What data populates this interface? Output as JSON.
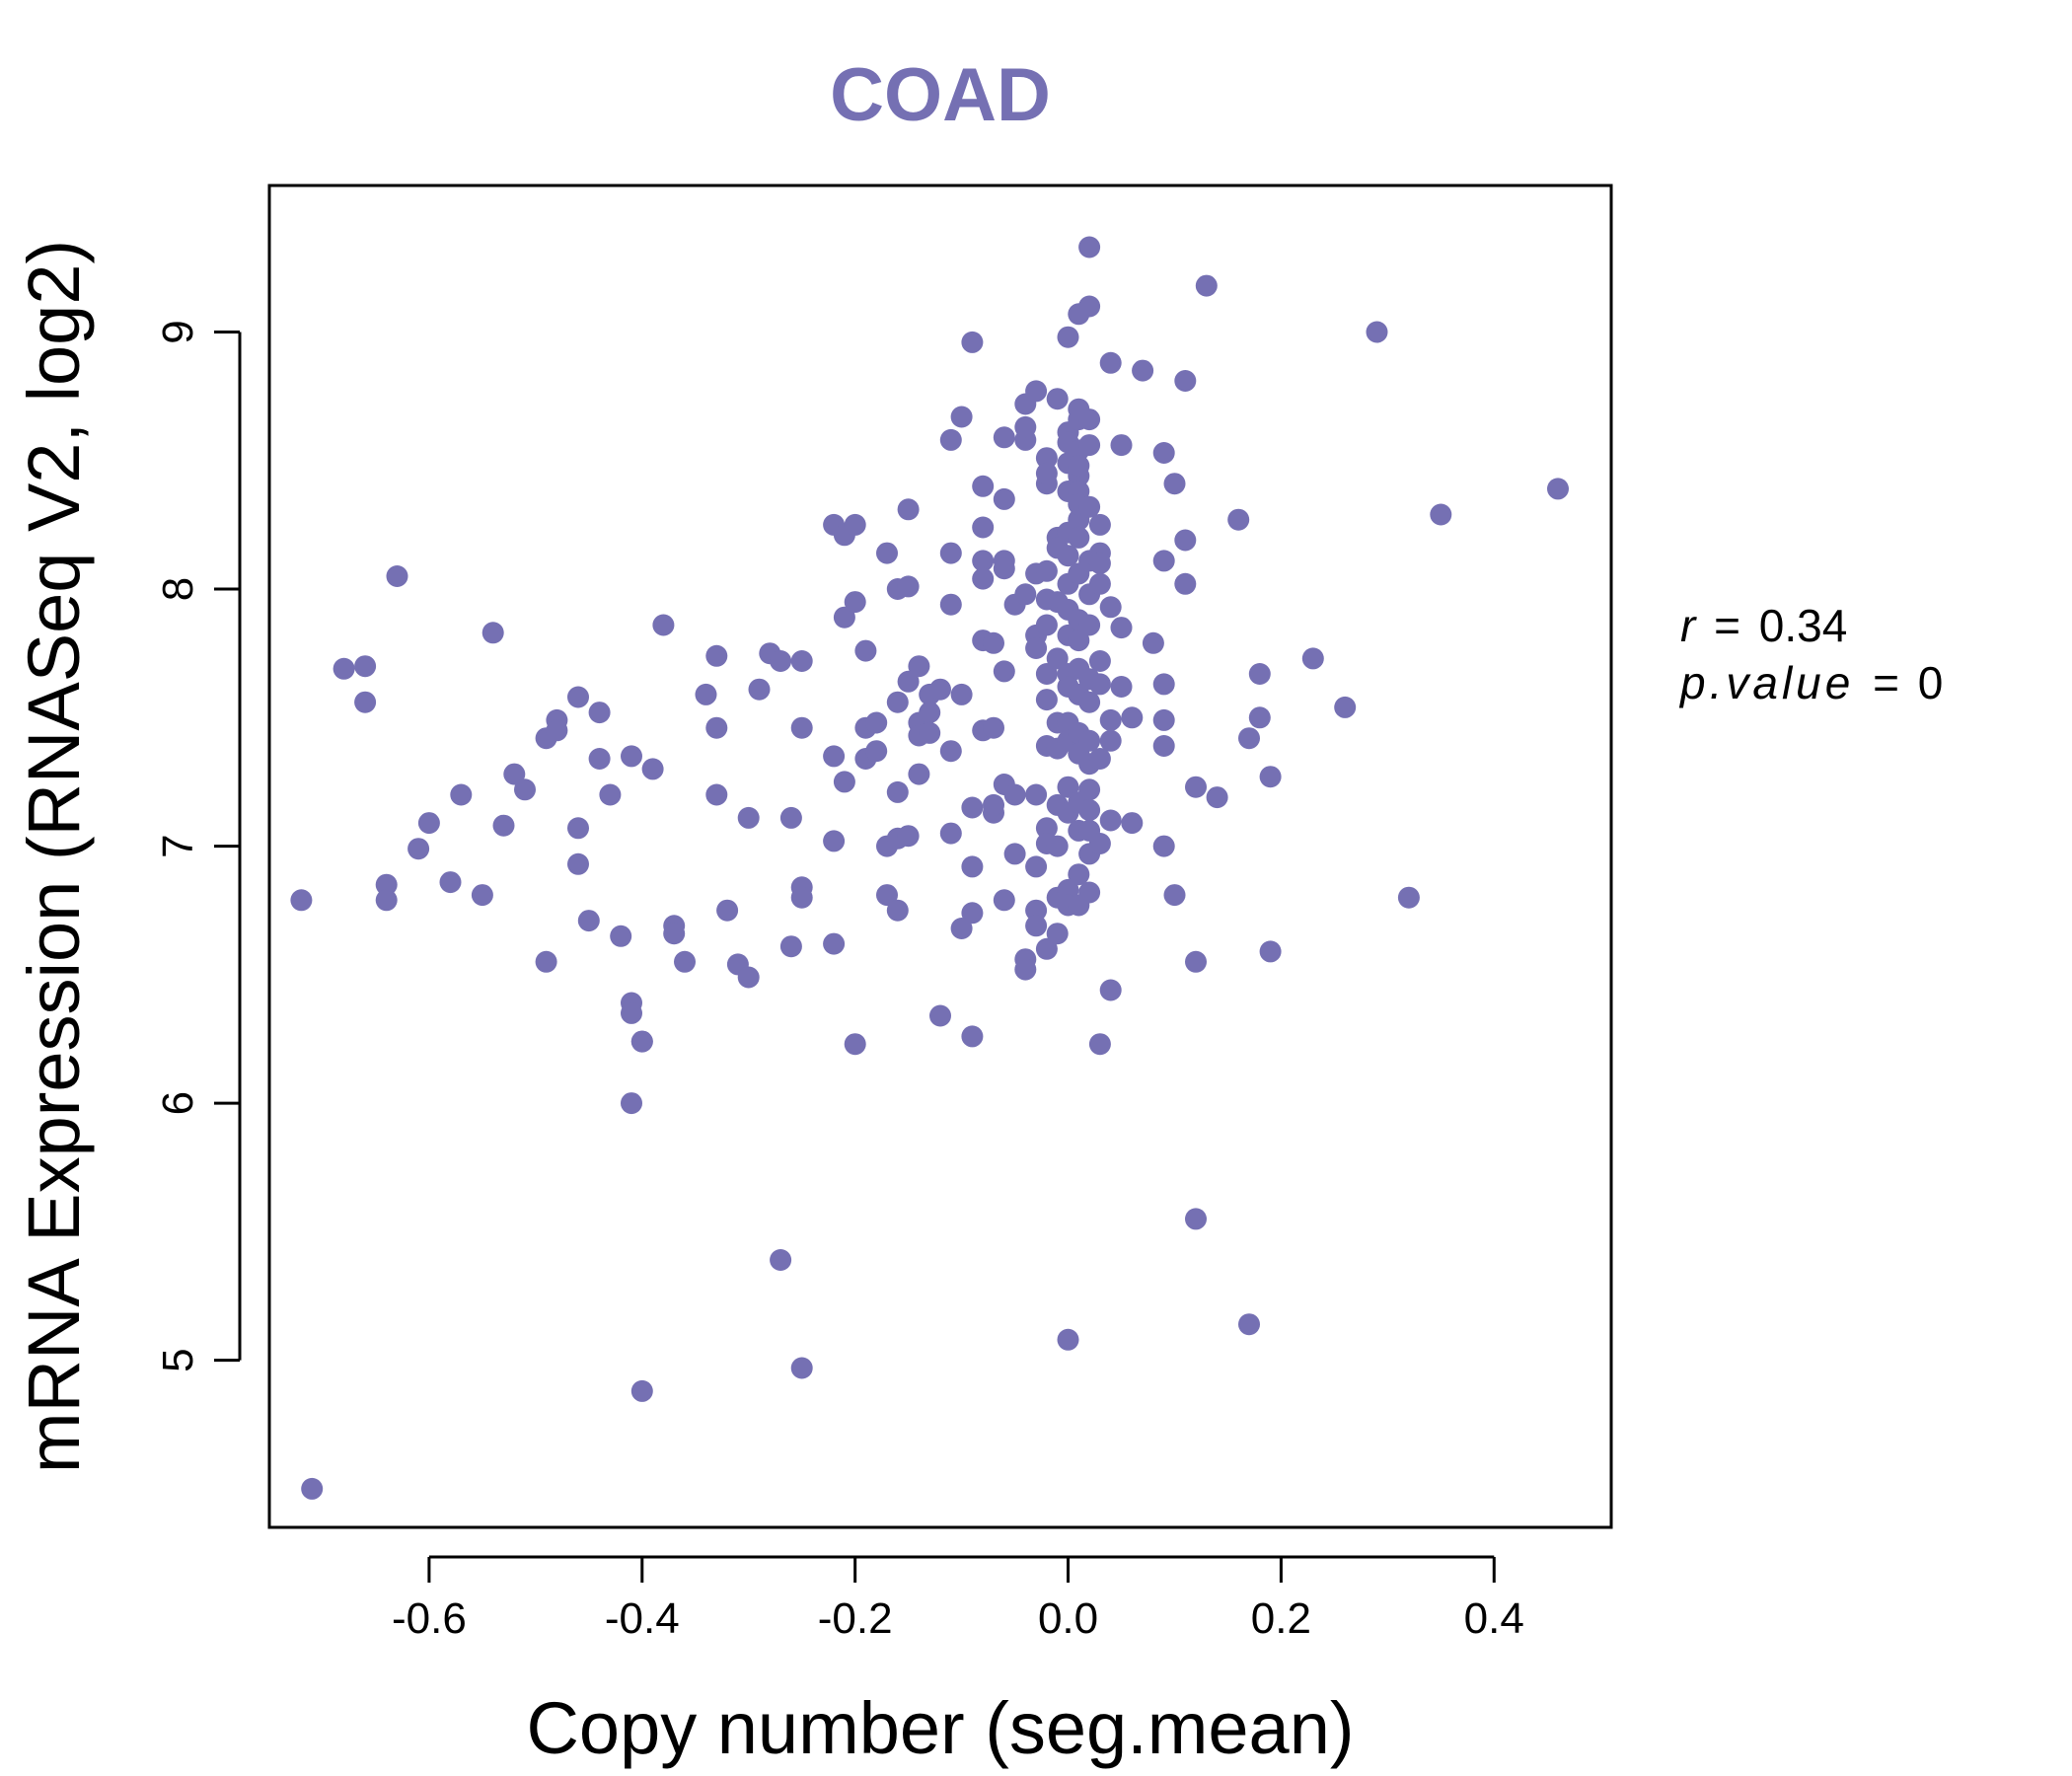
{
  "colors": {
    "point": "#7570b3",
    "title": "#7570b3",
    "axis": "#000000"
  },
  "chart_data": {
    "type": "scatter",
    "title": "COAD",
    "xlabel": "Copy number (seg.mean)",
    "ylabel": "mRNA Expression (RNASeq V2, log2)",
    "xlim": [
      -0.75,
      0.51
    ],
    "ylim": [
      4.35,
      9.57
    ],
    "xticks": [
      -0.6,
      -0.4,
      -0.2,
      0.0,
      0.2,
      0.4
    ],
    "xtick_labels": [
      "-0.6",
      "-0.4",
      "-0.2",
      "0.0",
      "0.2",
      "0.4"
    ],
    "yticks": [
      5,
      6,
      7,
      8,
      9
    ],
    "ytick_labels": [
      "5",
      "6",
      "7",
      "8",
      "9"
    ],
    "annotation": {
      "r_label": "r",
      "r_value": "0.34",
      "p_label": "p.value",
      "p_value": "0"
    },
    "points": [
      [
        -0.71,
        4.5
      ],
      [
        -0.72,
        6.79
      ],
      [
        -0.68,
        7.69
      ],
      [
        -0.66,
        7.7
      ],
      [
        -0.66,
        7.56
      ],
      [
        -0.64,
        6.85
      ],
      [
        -0.64,
        6.79
      ],
      [
        -0.63,
        8.05
      ],
      [
        -0.61,
        6.99
      ],
      [
        -0.6,
        7.09
      ],
      [
        -0.58,
        6.86
      ],
      [
        -0.57,
        7.2
      ],
      [
        -0.55,
        6.81
      ],
      [
        -0.54,
        7.83
      ],
      [
        -0.53,
        7.08
      ],
      [
        -0.52,
        7.28
      ],
      [
        -0.51,
        7.22
      ],
      [
        -0.49,
        7.42
      ],
      [
        -0.48,
        7.49
      ],
      [
        -0.48,
        7.45
      ],
      [
        -0.49,
        6.55
      ],
      [
        -0.46,
        7.58
      ],
      [
        -0.46,
        7.07
      ],
      [
        -0.46,
        6.93
      ],
      [
        -0.45,
        6.71
      ],
      [
        -0.44,
        7.52
      ],
      [
        -0.44,
        7.34
      ],
      [
        -0.43,
        7.2
      ],
      [
        -0.42,
        6.65
      ],
      [
        -0.41,
        6.39
      ],
      [
        -0.41,
        6.35
      ],
      [
        -0.4,
        6.24
      ],
      [
        -0.4,
        6.24
      ],
      [
        -0.41,
        7.35
      ],
      [
        -0.39,
        7.3
      ],
      [
        -0.41,
        6.0
      ],
      [
        -0.4,
        4.88
      ],
      [
        -0.38,
        7.86
      ],
      [
        -0.37,
        6.69
      ],
      [
        -0.37,
        6.66
      ],
      [
        -0.36,
        6.55
      ],
      [
        -0.34,
        7.59
      ],
      [
        -0.33,
        7.46
      ],
      [
        -0.33,
        7.74
      ],
      [
        -0.33,
        7.2
      ],
      [
        -0.32,
        6.75
      ],
      [
        -0.31,
        6.54
      ],
      [
        -0.3,
        6.49
      ],
      [
        -0.3,
        7.11
      ],
      [
        -0.29,
        7.61
      ],
      [
        -0.28,
        7.75
      ],
      [
        -0.27,
        7.72
      ],
      [
        -0.26,
        7.11
      ],
      [
        -0.26,
        6.61
      ],
      [
        -0.25,
        6.84
      ],
      [
        -0.25,
        6.8
      ],
      [
        -0.25,
        7.72
      ],
      [
        -0.25,
        7.46
      ],
      [
        -0.27,
        5.39
      ],
      [
        -0.25,
        4.97
      ],
      [
        -0.22,
        8.25
      ],
      [
        -0.21,
        8.21
      ],
      [
        -0.2,
        8.25
      ],
      [
        -0.22,
        7.35
      ],
      [
        -0.21,
        7.25
      ],
      [
        -0.21,
        7.89
      ],
      [
        -0.2,
        7.95
      ],
      [
        -0.19,
        7.76
      ],
      [
        -0.19,
        7.46
      ],
      [
        -0.18,
        7.48
      ],
      [
        -0.19,
        7.34
      ],
      [
        -0.18,
        7.37
      ],
      [
        -0.22,
        7.02
      ],
      [
        -0.22,
        6.62
      ],
      [
        -0.2,
        6.23
      ],
      [
        -0.17,
        8.14
      ],
      [
        -0.16,
        8.0
      ],
      [
        -0.15,
        8.01
      ],
      [
        -0.15,
        8.31
      ],
      [
        -0.16,
        7.56
      ],
      [
        -0.15,
        7.64
      ],
      [
        -0.14,
        7.7
      ],
      [
        -0.14,
        7.48
      ],
      [
        -0.14,
        7.43
      ],
      [
        -0.14,
        7.28
      ],
      [
        -0.16,
        7.21
      ],
      [
        -0.17,
        7.0
      ],
      [
        -0.16,
        7.03
      ],
      [
        -0.15,
        7.04
      ],
      [
        -0.17,
        6.81
      ],
      [
        -0.16,
        6.75
      ],
      [
        -0.13,
        7.59
      ],
      [
        -0.13,
        7.52
      ],
      [
        -0.12,
        7.61
      ],
      [
        -0.13,
        7.44
      ],
      [
        -0.11,
        8.14
      ],
      [
        -0.11,
        7.94
      ],
      [
        -0.1,
        7.59
      ],
      [
        -0.11,
        7.37
      ],
      [
        -0.11,
        7.05
      ],
      [
        -0.11,
        8.58
      ],
      [
        -0.1,
        8.67
      ],
      [
        -0.09,
        8.96
      ],
      [
        -0.09,
        7.15
      ],
      [
        -0.09,
        6.92
      ],
      [
        -0.09,
        6.74
      ],
      [
        -0.1,
        6.68
      ],
      [
        -0.09,
        6.26
      ],
      [
        -0.12,
        6.34
      ],
      [
        -0.08,
        8.4
      ],
      [
        -0.08,
        8.24
      ],
      [
        -0.08,
        8.11
      ],
      [
        -0.08,
        8.04
      ],
      [
        -0.08,
        7.8
      ],
      [
        -0.07,
        7.79
      ],
      [
        -0.08,
        7.45
      ],
      [
        -0.07,
        7.46
      ],
      [
        -0.07,
        7.13
      ],
      [
        -0.07,
        7.16
      ],
      [
        -0.06,
        7.24
      ],
      [
        -0.06,
        8.59
      ],
      [
        -0.06,
        8.35
      ],
      [
        -0.06,
        8.11
      ],
      [
        -0.06,
        8.08
      ],
      [
        -0.05,
        7.94
      ],
      [
        -0.06,
        7.68
      ],
      [
        -0.05,
        7.2
      ],
      [
        -0.06,
        6.79
      ],
      [
        -0.05,
        6.97
      ],
      [
        -0.04,
        8.58
      ],
      [
        -0.04,
        8.72
      ],
      [
        -0.03,
        8.77
      ],
      [
        -0.04,
        8.63
      ],
      [
        -0.04,
        7.98
      ],
      [
        -0.03,
        8.06
      ],
      [
        -0.02,
        8.07
      ],
      [
        -0.02,
        7.96
      ],
      [
        -0.03,
        7.82
      ],
      [
        -0.03,
        7.77
      ],
      [
        -0.02,
        7.86
      ],
      [
        -0.02,
        7.67
      ],
      [
        -0.02,
        7.57
      ],
      [
        -0.02,
        7.39
      ],
      [
        -0.03,
        7.2
      ],
      [
        -0.02,
        7.07
      ],
      [
        -0.02,
        7.01
      ],
      [
        -0.03,
        6.92
      ],
      [
        -0.03,
        6.75
      ],
      [
        -0.03,
        6.69
      ],
      [
        -0.04,
        6.56
      ],
      [
        -0.04,
        6.52
      ],
      [
        -0.02,
        6.6
      ],
      [
        -0.02,
        8.51
      ],
      [
        -0.02,
        8.41
      ],
      [
        -0.02,
        8.45
      ],
      [
        -0.01,
        8.74
      ],
      [
        -0.01,
        8.2
      ],
      [
        -0.01,
        8.16
      ],
      [
        -0.01,
        7.95
      ],
      [
        -0.01,
        7.73
      ],
      [
        -0.01,
        7.48
      ],
      [
        -0.01,
        7.38
      ],
      [
        -0.01,
        7.16
      ],
      [
        -0.01,
        7.0
      ],
      [
        -0.01,
        6.8
      ],
      [
        -0.01,
        6.66
      ],
      [
        0.0,
        8.98
      ],
      [
        0.0,
        8.61
      ],
      [
        0.0,
        8.57
      ],
      [
        0.0,
        8.49
      ],
      [
        0.0,
        8.38
      ],
      [
        0.0,
        8.22
      ],
      [
        0.0,
        8.13
      ],
      [
        0.0,
        8.02
      ],
      [
        0.0,
        7.92
      ],
      [
        0.0,
        7.82
      ],
      [
        0.0,
        7.67
      ],
      [
        0.0,
        7.62
      ],
      [
        0.0,
        7.48
      ],
      [
        0.0,
        7.41
      ],
      [
        0.0,
        7.23
      ],
      [
        0.0,
        7.13
      ],
      [
        0.0,
        6.83
      ],
      [
        0.0,
        6.77
      ],
      [
        0.0,
        5.08
      ],
      [
        0.01,
        9.07
      ],
      [
        0.01,
        8.66
      ],
      [
        0.01,
        8.54
      ],
      [
        0.01,
        8.44
      ],
      [
        0.01,
        8.38
      ],
      [
        0.01,
        8.27
      ],
      [
        0.01,
        8.2
      ],
      [
        0.01,
        8.06
      ],
      [
        0.01,
        7.88
      ],
      [
        0.01,
        7.8
      ],
      [
        0.01,
        7.69
      ],
      [
        0.01,
        7.59
      ],
      [
        0.01,
        7.44
      ],
      [
        0.01,
        7.36
      ],
      [
        0.01,
        7.17
      ],
      [
        0.01,
        7.06
      ],
      [
        0.01,
        6.89
      ],
      [
        0.01,
        6.77
      ],
      [
        0.01,
        8.7
      ],
      [
        0.01,
        8.48
      ],
      [
        0.01,
        8.33
      ],
      [
        0.02,
        9.33
      ],
      [
        0.02,
        9.1
      ],
      [
        0.02,
        8.66
      ],
      [
        0.02,
        8.32
      ],
      [
        0.02,
        8.11
      ],
      [
        0.02,
        7.98
      ],
      [
        0.02,
        7.56
      ],
      [
        0.02,
        7.41
      ],
      [
        0.02,
        7.32
      ],
      [
        0.02,
        7.22
      ],
      [
        0.02,
        6.82
      ],
      [
        0.02,
        8.56
      ],
      [
        0.02,
        7.86
      ],
      [
        0.02,
        7.65
      ],
      [
        0.02,
        7.14
      ],
      [
        0.02,
        7.06
      ],
      [
        0.02,
        6.97
      ],
      [
        0.03,
        8.25
      ],
      [
        0.03,
        8.14
      ],
      [
        0.03,
        8.1
      ],
      [
        0.03,
        8.02
      ],
      [
        0.03,
        7.72
      ],
      [
        0.03,
        7.63
      ],
      [
        0.03,
        7.34
      ],
      [
        0.03,
        7.01
      ],
      [
        0.03,
        6.23
      ],
      [
        0.04,
        8.88
      ],
      [
        0.04,
        7.93
      ],
      [
        0.04,
        7.49
      ],
      [
        0.04,
        7.41
      ],
      [
        0.04,
        7.1
      ],
      [
        0.04,
        6.44
      ],
      [
        0.05,
        8.56
      ],
      [
        0.05,
        7.85
      ],
      [
        0.05,
        7.62
      ],
      [
        0.06,
        7.5
      ],
      [
        0.06,
        7.09
      ],
      [
        0.07,
        8.85
      ],
      [
        0.08,
        7.79
      ],
      [
        0.09,
        8.53
      ],
      [
        0.09,
        7.63
      ],
      [
        0.09,
        7.49
      ],
      [
        0.09,
        7.0
      ],
      [
        0.09,
        7.39
      ],
      [
        0.1,
        8.41
      ],
      [
        0.09,
        8.11
      ],
      [
        0.1,
        6.81
      ],
      [
        0.11,
        8.02
      ],
      [
        0.11,
        8.81
      ],
      [
        0.11,
        8.19
      ],
      [
        0.12,
        7.23
      ],
      [
        0.12,
        6.55
      ],
      [
        0.12,
        5.55
      ],
      [
        0.13,
        9.18
      ],
      [
        0.14,
        7.19
      ],
      [
        0.16,
        8.27
      ],
      [
        0.17,
        7.42
      ],
      [
        0.17,
        5.14
      ],
      [
        0.18,
        7.67
      ],
      [
        0.18,
        7.5
      ],
      [
        0.19,
        7.27
      ],
      [
        0.19,
        6.59
      ],
      [
        0.23,
        7.73
      ],
      [
        0.26,
        7.54
      ],
      [
        0.29,
        9.0
      ],
      [
        0.32,
        6.8
      ],
      [
        0.35,
        8.29
      ],
      [
        0.46,
        8.39
      ]
    ]
  }
}
